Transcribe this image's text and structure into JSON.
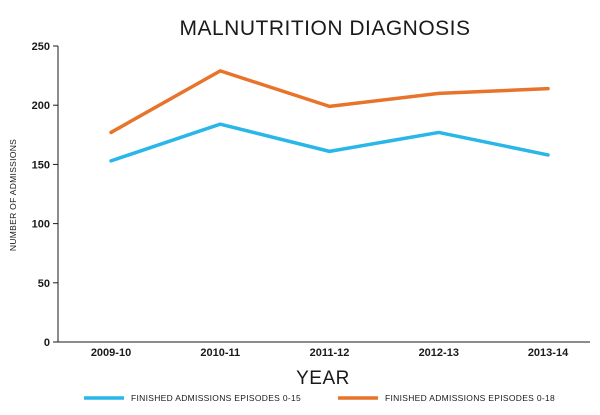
{
  "chart_data": {
    "type": "line",
    "title": "MALNUTRITION DIAGNOSIS",
    "xlabel": "YEAR",
    "ylabel": "NUMBER OF ADMISSIONS",
    "categories": [
      "2009-10",
      "2010-11",
      "2011-12",
      "2012-13",
      "2013-14"
    ],
    "ylim": [
      0,
      250
    ],
    "yticks": [
      0,
      50,
      100,
      150,
      200,
      250
    ],
    "grid": false,
    "legend_position": "bottom",
    "series": [
      {
        "name": "FINISHED ADMISSIONS EPISODES 0-15",
        "color": "#29b6e8",
        "values": [
          153,
          184,
          161,
          177,
          158
        ]
      },
      {
        "name": "FINISHED ADMISSIONS EPISODES 0-18",
        "color": "#e8732a",
        "values": [
          177,
          229,
          199,
          210,
          214
        ]
      }
    ]
  }
}
